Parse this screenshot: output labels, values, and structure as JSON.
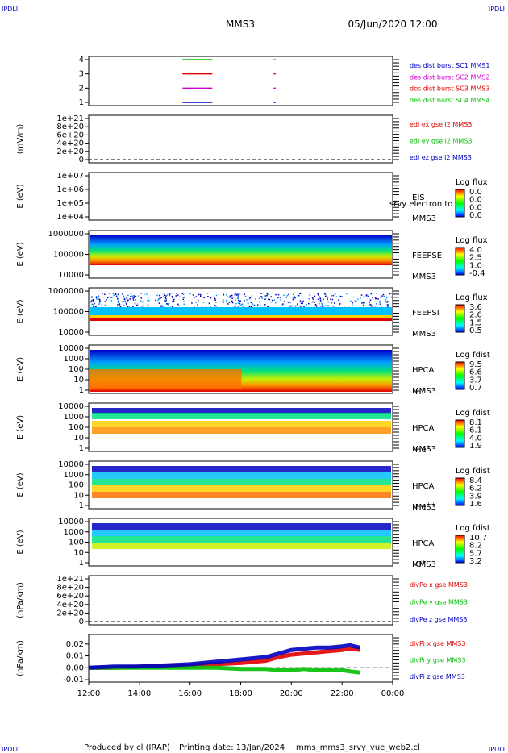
{
  "header": {
    "corner_tl": "IPDLI",
    "corner_tr": "IPDLI",
    "corner_bl": "IPDLI",
    "corner_br": "IPDLI",
    "spacecraft": "MMS3",
    "date_time": "05/Jun/2020 12:00"
  },
  "footer": {
    "produced_by": "Produced by cl (IRAP)",
    "printing_date": "Printing date: 13/Jan/2024",
    "filename": "mms_mms3_srvy_vue_web2.cl"
  },
  "colors": {
    "red": "#e00000",
    "green": "#00c000",
    "blue": "#0000c0",
    "magenta": "#d000d0"
  },
  "chart_data": [
    {
      "id": "burst",
      "type": "line",
      "yticks": [
        "4",
        "3",
        "2",
        "1"
      ],
      "legend": [
        {
          "text": "des dist burst SC1 MMS1",
          "color": "#0000c0"
        },
        {
          "text": "des dist burst SC2 MMS2",
          "color": "#d000d0"
        },
        {
          "text": "des dist burst SC3 MMS3",
          "color": "#e00000"
        },
        {
          "text": "des dist burst SC4 MMS4",
          "color": "#00c000"
        }
      ],
      "segments": [
        {
          "sc": 4,
          "start_h": 15.7,
          "end_h": 16.85,
          "color": "#00c000"
        },
        {
          "sc": 3,
          "start_h": 15.7,
          "end_h": 16.85,
          "color": "#e00000"
        },
        {
          "sc": 2,
          "start_h": 15.7,
          "end_h": 16.85,
          "color": "#d000d0"
        },
        {
          "sc": 1,
          "start_h": 15.7,
          "end_h": 16.85,
          "color": "#0000c0"
        },
        {
          "sc": 4,
          "start_h": 19.3,
          "end_h": 19.35,
          "color": "#00c000"
        },
        {
          "sc": 3,
          "start_h": 19.3,
          "end_h": 19.35,
          "color": "#e00000"
        },
        {
          "sc": 2,
          "start_h": 19.3,
          "end_h": 19.35,
          "color": "#d000d0"
        },
        {
          "sc": 1,
          "start_h": 19.3,
          "end_h": 19.35,
          "color": "#0000c0"
        }
      ]
    },
    {
      "id": "edi",
      "type": "line",
      "ylabel": "(mV/m)",
      "yticks": [
        "1e+21",
        "8e+20",
        "6e+20",
        "4e+20",
        "2e+20",
        "0"
      ],
      "legend": [
        {
          "text": "edi ex gse l2 MMS3",
          "color": "#e00000"
        },
        {
          "text": "edi ey gse l2 MMS3",
          "color": "#00c000"
        },
        {
          "text": "edi ez gse l2 MMS3",
          "color": "#0000c0"
        }
      ]
    },
    {
      "id": "eis",
      "type": "heatmap",
      "ylabel": "E (eV)",
      "yticks": [
        "1e+07",
        "1e+06",
        "1e+05",
        "1e+04"
      ],
      "right_labels": [
        "EIS",
        "MMS3"
      ],
      "overlay_text": "srvy electron to",
      "colorbar": {
        "title": "Log flux",
        "ticks": [
          "0.0",
          "0.0",
          "0.0",
          "0.0"
        ]
      }
    },
    {
      "id": "feepse",
      "type": "heatmap",
      "ylabel": "E (eV)",
      "yticks": [
        "1000000",
        "100000",
        "10000"
      ],
      "right_labels": [
        "FEEPSE",
        "MMS3"
      ],
      "colorbar": {
        "title": "Log flux",
        "ticks": [
          "4.0",
          "2.5",
          "1.0",
          "-0.4"
        ]
      }
    },
    {
      "id": "feepsi",
      "type": "heatmap",
      "ylabel": "E (eV)",
      "yticks": [
        "1000000",
        "100000",
        "10000"
      ],
      "right_labels": [
        "FEEPSI",
        "MMS3"
      ],
      "colorbar": {
        "title": "Log flux",
        "ticks": [
          "3.6",
          "2.6",
          "1.5",
          "0.5"
        ]
      }
    },
    {
      "id": "hpca_h",
      "type": "heatmap",
      "ylabel": "E (eV)",
      "yticks": [
        "10000",
        "1000",
        "100",
        "10",
        "1"
      ],
      "right_labels": [
        "HPCA",
        "MMS3"
      ],
      "species": "H",
      "species_sup": "+",
      "colorbar": {
        "title": "Log fdist",
        "ticks": [
          "9.5",
          "6.6",
          "3.7",
          "0.7"
        ]
      }
    },
    {
      "id": "hpca_he1",
      "type": "heatmap",
      "ylabel": "E (eV)",
      "yticks": [
        "10000",
        "1000",
        "100",
        "10",
        "1"
      ],
      "right_labels": [
        "HPCA",
        "MMS3"
      ],
      "species": "He",
      "species_sup": "+",
      "colorbar": {
        "title": "Log fdist",
        "ticks": [
          "8.1",
          "6.1",
          "4.0",
          "1.9"
        ]
      }
    },
    {
      "id": "hpca_he2",
      "type": "heatmap",
      "ylabel": "E (eV)",
      "yticks": [
        "10000",
        "1000",
        "100",
        "10",
        "1"
      ],
      "right_labels": [
        "HPCA",
        "MMS3"
      ],
      "species": "He",
      "species_sup": "++",
      "colorbar": {
        "title": "Log fdist",
        "ticks": [
          "8.4",
          "6.2",
          "3.9",
          "1.6"
        ]
      }
    },
    {
      "id": "hpca_o",
      "type": "heatmap",
      "ylabel": "E (eV)",
      "yticks": [
        "10000",
        "1000",
        "100",
        "10",
        "1"
      ],
      "right_labels": [
        "HPCA",
        "MMS3"
      ],
      "species": "O",
      "species_sup": "+",
      "colorbar": {
        "title": "Log fdist",
        "ticks": [
          "10.7",
          "8.2",
          "5.7",
          "3.2"
        ]
      }
    },
    {
      "id": "divpe",
      "type": "line",
      "ylabel": "(nPa/km)",
      "yticks": [
        "1e+21",
        "8e+20",
        "6e+20",
        "4e+20",
        "2e+20",
        "0"
      ],
      "legend": [
        {
          "text": "divPe x gse MMS3",
          "color": "#e00000"
        },
        {
          "text": "divPe y gse MMS3",
          "color": "#00c000"
        },
        {
          "text": "divPe z gse MMS3",
          "color": "#0000c0"
        }
      ]
    },
    {
      "id": "divpi",
      "type": "line",
      "ylabel": "(nPa/km)",
      "yticks": [
        "0.02",
        "0.01",
        "0.00",
        "-0.01"
      ],
      "ylim": [
        -0.012,
        0.028
      ],
      "legend": [
        {
          "text": "divPi x gse MMS3",
          "color": "#e00000"
        },
        {
          "text": "divPi y gse MMS3",
          "color": "#00c000"
        },
        {
          "text": "divPi z gse MMS3",
          "color": "#0000c0"
        }
      ],
      "x_hours": [
        12,
        13,
        14,
        15,
        16,
        17,
        18,
        19,
        19.5,
        20,
        20.5,
        21,
        21.5,
        22,
        22.3,
        22.7
      ],
      "series": [
        {
          "name": "divPi x gse MMS3",
          "color": "#e00000",
          "values": [
            0.0,
            0.0,
            0.001,
            0.001,
            0.002,
            0.003,
            0.004,
            0.006,
            0.009,
            0.011,
            0.012,
            0.013,
            0.014,
            0.015,
            0.016,
            0.015
          ]
        },
        {
          "name": "divPi y gse MMS3",
          "color": "#00c000",
          "values": [
            0.0,
            0.0,
            0.0,
            0.0,
            0.0,
            0.0,
            -0.001,
            -0.001,
            -0.002,
            -0.002,
            -0.001,
            -0.002,
            -0.002,
            -0.002,
            -0.003,
            -0.004
          ]
        },
        {
          "name": "divPi z gse MMS3",
          "color": "#0000c0",
          "values": [
            0.0,
            0.001,
            0.001,
            0.002,
            0.003,
            0.005,
            0.007,
            0.009,
            0.012,
            0.015,
            0.016,
            0.017,
            0.017,
            0.018,
            0.019,
            0.017
          ]
        }
      ]
    }
  ],
  "x_axis": {
    "ticks": [
      "12:00",
      "14:00",
      "16:00",
      "18:00",
      "20:00",
      "22:00",
      "00:00"
    ],
    "range_h": [
      12,
      24
    ]
  }
}
